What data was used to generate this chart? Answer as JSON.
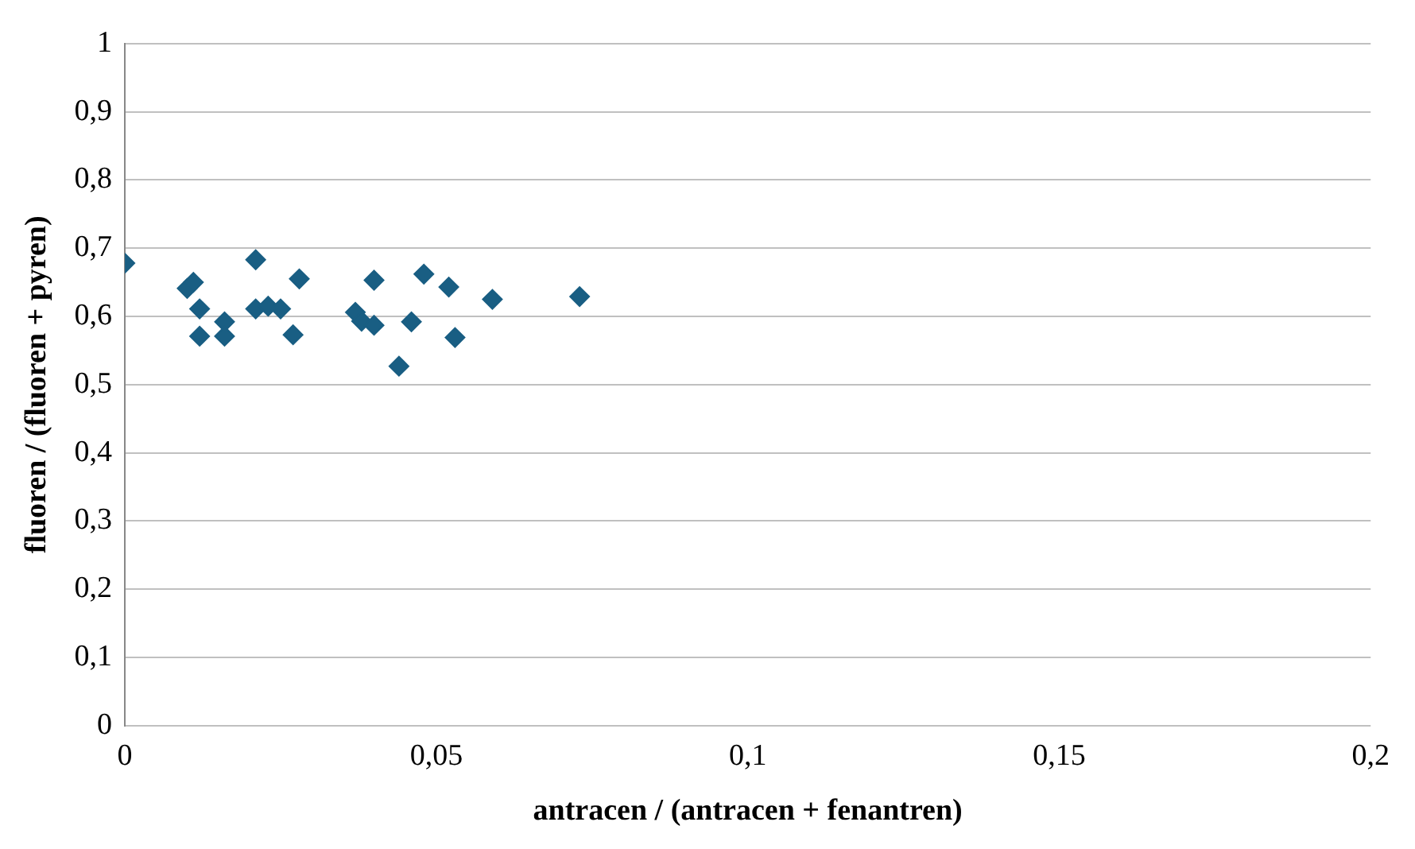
{
  "chart_data": {
    "type": "scatter",
    "xlabel": "antracen / (antracen + fenantren)",
    "ylabel": "fluoren / (fluoren + pyren)",
    "x": [
      0,
      0.01,
      0.011,
      0.012,
      0.012,
      0.016,
      0.016,
      0.021,
      0.021,
      0.023,
      0.025,
      0.027,
      0.028,
      0.037,
      0.038,
      0.04,
      0.04,
      0.048,
      0.044,
      0.046,
      0.052,
      0.053,
      0.059,
      0.073
    ],
    "series": [
      {
        "color": "#195e83",
        "values": [
          0.678,
          0.641,
          0.65,
          0.611,
          0.571,
          0.592,
          0.571,
          0.683,
          0.611,
          0.615,
          0.611,
          0.573,
          0.655,
          0.606,
          0.593,
          0.587,
          0.653,
          0.662,
          0.527,
          0.592,
          0.643,
          0.569,
          0.625,
          0.629
        ]
      }
    ],
    "xlim": [
      0,
      0.2
    ],
    "xticks": [
      {
        "value": 0,
        "label": "0"
      },
      {
        "value": 0.05,
        "label": "0,05"
      },
      {
        "value": 0.1,
        "label": "0,1"
      },
      {
        "value": 0.15,
        "label": "0,15"
      },
      {
        "value": 0.2,
        "label": "0,2"
      }
    ],
    "ylim": [
      0,
      1
    ],
    "yticks": [
      {
        "value": 0,
        "label": "0"
      },
      {
        "value": 0.1,
        "label": "0,1"
      },
      {
        "value": 0.2,
        "label": "0,2"
      },
      {
        "value": 0.3,
        "label": "0,3"
      },
      {
        "value": 0.4,
        "label": "0,4"
      },
      {
        "value": 0.5,
        "label": "0,5"
      },
      {
        "value": 0.6,
        "label": "0,6"
      },
      {
        "value": 0.7,
        "label": "0,7"
      },
      {
        "value": 0.8,
        "label": "0,8"
      },
      {
        "value": 0.9,
        "label": "0,9"
      },
      {
        "value": 1,
        "label": "1"
      }
    ],
    "grid": "y",
    "legend": false,
    "marker": "diamond"
  }
}
